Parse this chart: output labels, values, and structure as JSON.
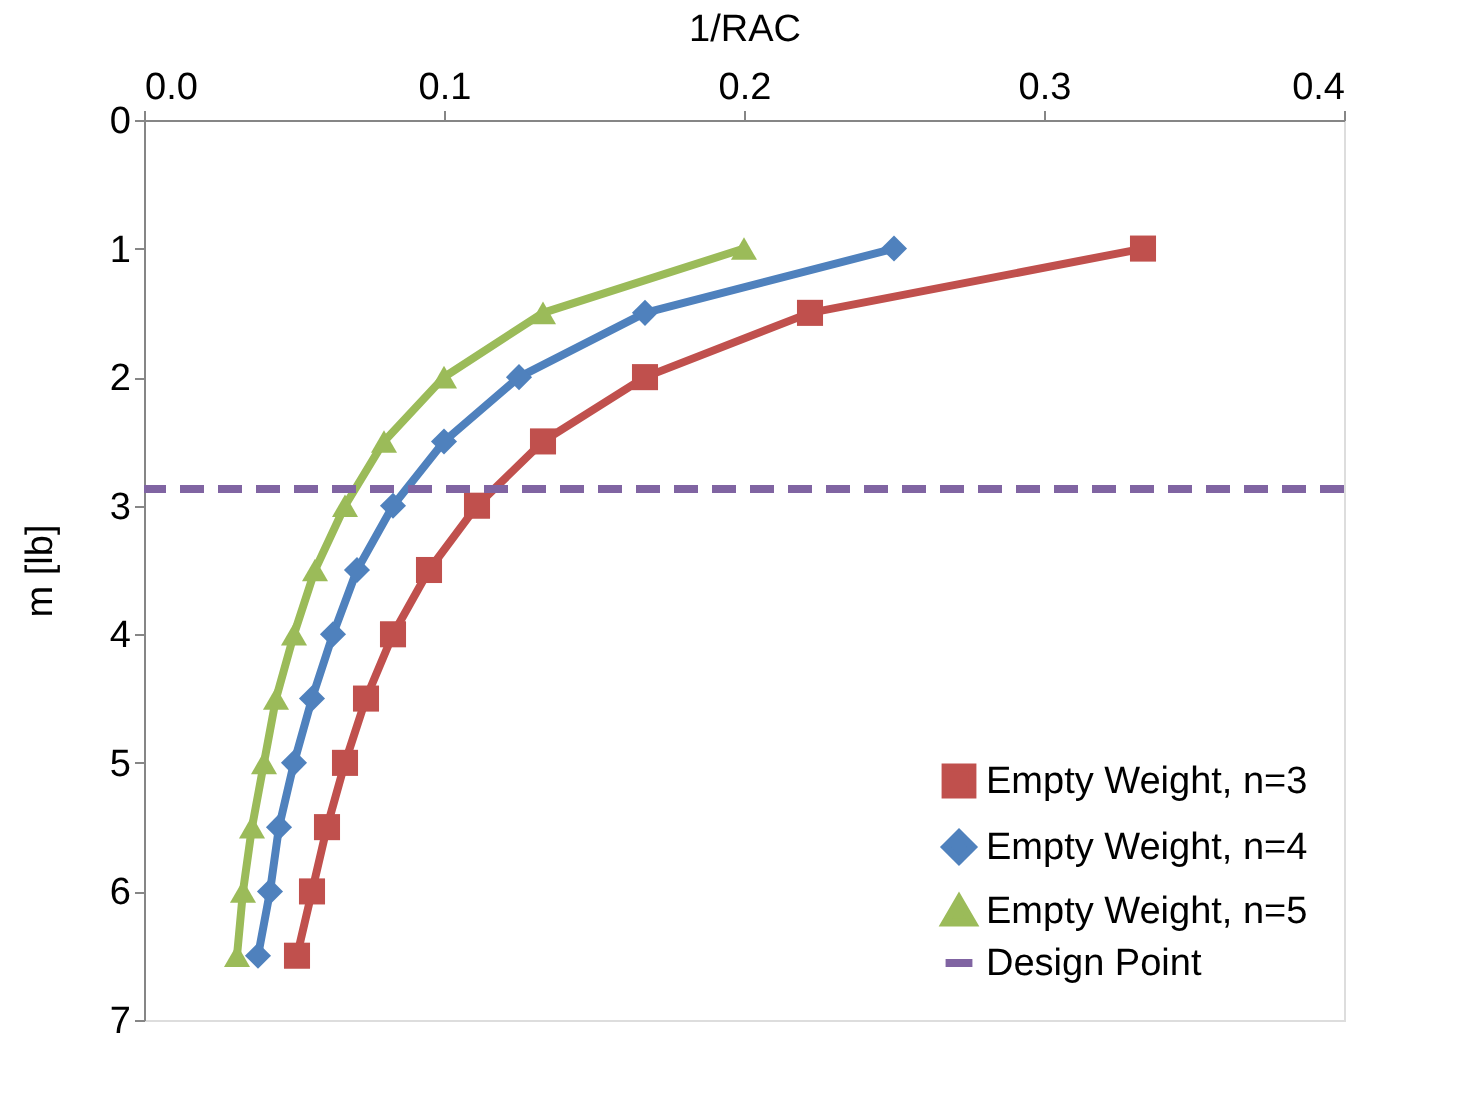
{
  "chart_data": {
    "type": "line",
    "xlabel": "1/RAC",
    "ylabel": "m [lb]",
    "xlim": [
      0,
      0.4
    ],
    "xticks": [
      {
        "value": 0,
        "label": "0.0"
      },
      0.1,
      0.2,
      0.3,
      0.4
    ],
    "ylim": [
      7,
      0
    ],
    "yticks": [
      0,
      1,
      2,
      3,
      4,
      5,
      6,
      7
    ],
    "grid": false,
    "legend": "bottom right",
    "series": [
      {
        "name": "Empty Weight, n=3",
        "color": "#c0504d",
        "marker": "square",
        "x": [
          0.333,
          0.222,
          0.167,
          0.133,
          0.111,
          0.095,
          0.083,
          0.074,
          0.067,
          0.061,
          0.056,
          0.051
        ],
        "values": [
          1,
          1.5,
          2,
          2.5,
          3,
          3.5,
          4,
          4.5,
          5,
          5.5,
          6,
          6.5
        ]
      },
      {
        "name": "Empty Weight, n=4",
        "color": "#4f81bd",
        "marker": "diamond",
        "x": [
          0.25,
          0.167,
          0.125,
          0.1,
          0.083,
          0.071,
          0.063,
          0.056,
          0.05,
          0.045,
          0.042,
          0.038
        ],
        "values": [
          1,
          1.5,
          2,
          2.5,
          3,
          3.5,
          4,
          4.5,
          5,
          5.5,
          6,
          6.5
        ]
      },
      {
        "name": "Empty Weight, n=5",
        "color": "#9bbb59",
        "marker": "triangle",
        "x": [
          0.2,
          0.133,
          0.1,
          0.08,
          0.067,
          0.057,
          0.05,
          0.044,
          0.04,
          0.036,
          0.033,
          0.031
        ],
        "values": [
          1,
          1.5,
          2,
          2.5,
          3,
          3.5,
          4,
          4.5,
          5,
          5.5,
          6,
          6.5
        ]
      }
    ],
    "ref_lines": [
      {
        "axis": "y",
        "value": 2.87,
        "label": "Design Point",
        "color": "#8064a2",
        "line_style": "dashed"
      }
    ]
  }
}
